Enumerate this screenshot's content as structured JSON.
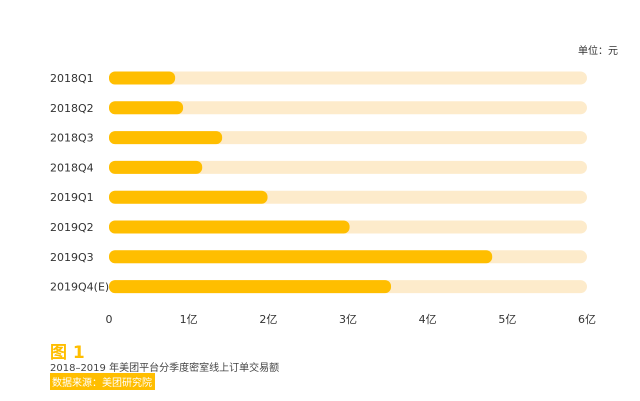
{
  "unit_label": "单位：元",
  "figure": {
    "label": "图 1",
    "caption": "2018–2019 年美团平台分季度密室线上订单交易额",
    "source": "数据来源：美团研究院"
  },
  "colors": {
    "bar": "#FFBE00",
    "track": "#FDEBCB"
  },
  "chart_data": {
    "type": "bar",
    "orientation": "horizontal",
    "title": "",
    "xlabel": "",
    "ylabel": "",
    "categories": [
      "2018Q1",
      "2018Q2",
      "2018Q3",
      "2018Q4",
      "2019Q1",
      "2019Q2",
      "2019Q3",
      "2019Q4(E)"
    ],
    "values": [
      0.83,
      0.93,
      1.42,
      1.17,
      1.99,
      3.02,
      4.81,
      3.54
    ],
    "value_unit": "亿",
    "xlim": [
      0,
      6
    ],
    "xticks": [
      0,
      1,
      2,
      3,
      4,
      5,
      6
    ],
    "xtick_labels": [
      "0",
      "1亿",
      "2亿",
      "3亿",
      "4亿",
      "5亿",
      "6亿"
    ],
    "grid": false,
    "legend": "none"
  }
}
